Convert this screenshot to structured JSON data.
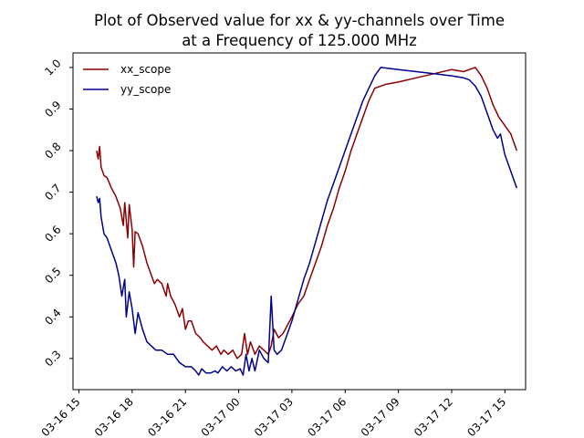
{
  "chart_data": {
    "type": "line",
    "title": [
      "Plot of Observed value for xx & yy-channels over Time",
      "at a Frequency of 125.000 MHz"
    ],
    "xlabel": "",
    "ylabel": "",
    "x_ticks": [
      "03-16 15",
      "03-16 18",
      "03-16 21",
      "03-17 00",
      "03-17 03",
      "03-17 06",
      "03-17 09",
      "03-17 12",
      "03-17 15"
    ],
    "y_ticks": [
      "0.3",
      "0.4",
      "0.5",
      "0.6",
      "0.7",
      "0.8",
      "0.9",
      "1.0"
    ],
    "xlim": [
      "2019-03-16 14:40",
      "2019-03-17 16:10"
    ],
    "ylim": [
      0.225,
      1.035
    ],
    "grid": false,
    "legend_position": "top-left",
    "series": [
      {
        "name": "xx_scope",
        "color": "#8b0000",
        "points": [
          [
            "2019-03-16 16:00",
            0.8
          ],
          [
            "2019-03-16 16:05",
            0.78
          ],
          [
            "2019-03-16 16:10",
            0.81
          ],
          [
            "2019-03-16 16:15",
            0.76
          ],
          [
            "2019-03-16 16:25",
            0.74
          ],
          [
            "2019-03-16 16:35",
            0.735
          ],
          [
            "2019-03-16 16:50",
            0.71
          ],
          [
            "2019-03-16 17:05",
            0.69
          ],
          [
            "2019-03-16 17:20",
            0.66
          ],
          [
            "2019-03-16 17:30",
            0.62
          ],
          [
            "2019-03-16 17:35",
            0.675
          ],
          [
            "2019-03-16 17:45",
            0.59
          ],
          [
            "2019-03-16 17:50",
            0.67
          ],
          [
            "2019-03-16 18:00",
            0.61
          ],
          [
            "2019-03-16 18:05",
            0.52
          ],
          [
            "2019-03-16 18:10",
            0.605
          ],
          [
            "2019-03-16 18:20",
            0.6
          ],
          [
            "2019-03-16 18:35",
            0.57
          ],
          [
            "2019-03-16 18:50",
            0.53
          ],
          [
            "2019-03-16 19:05",
            0.5
          ],
          [
            "2019-03-16 19:15",
            0.48
          ],
          [
            "2019-03-16 19:25",
            0.49
          ],
          [
            "2019-03-16 19:40",
            0.48
          ],
          [
            "2019-03-16 19:55",
            0.45
          ],
          [
            "2019-03-16 20:00",
            0.48
          ],
          [
            "2019-03-16 20:10",
            0.45
          ],
          [
            "2019-03-16 20:25",
            0.43
          ],
          [
            "2019-03-16 20:40",
            0.4
          ],
          [
            "2019-03-16 20:50",
            0.42
          ],
          [
            "2019-03-16 21:00",
            0.37
          ],
          [
            "2019-03-16 21:10",
            0.39
          ],
          [
            "2019-03-16 21:20",
            0.39
          ],
          [
            "2019-03-16 21:35",
            0.36
          ],
          [
            "2019-03-16 21:50",
            0.35
          ],
          [
            "2019-03-16 22:00",
            0.34
          ],
          [
            "2019-03-16 22:15",
            0.33
          ],
          [
            "2019-03-16 22:30",
            0.32
          ],
          [
            "2019-03-16 22:45",
            0.33
          ],
          [
            "2019-03-16 23:00",
            0.31
          ],
          [
            "2019-03-16 23:10",
            0.32
          ],
          [
            "2019-03-16 23:25",
            0.31
          ],
          [
            "2019-03-16 23:40",
            0.32
          ],
          [
            "2019-03-16 23:55",
            0.3
          ],
          [
            "2019-03-17 00:10",
            0.31
          ],
          [
            "2019-03-17 00:20",
            0.36
          ],
          [
            "2019-03-17 00:30",
            0.31
          ],
          [
            "2019-03-17 00:40",
            0.34
          ],
          [
            "2019-03-17 00:55",
            0.31
          ],
          [
            "2019-03-17 01:10",
            0.33
          ],
          [
            "2019-03-17 01:25",
            0.32
          ],
          [
            "2019-03-17 01:40",
            0.31
          ],
          [
            "2019-03-17 01:50",
            0.33
          ],
          [
            "2019-03-17 02:00",
            0.37
          ],
          [
            "2019-03-17 02:15",
            0.35
          ],
          [
            "2019-03-17 02:30",
            0.36
          ],
          [
            "2019-03-17 02:45",
            0.38
          ],
          [
            "2019-03-17 03:00",
            0.4
          ],
          [
            "2019-03-17 03:20",
            0.43
          ],
          [
            "2019-03-17 03:40",
            0.45
          ],
          [
            "2019-03-17 04:00",
            0.49
          ],
          [
            "2019-03-17 04:20",
            0.53
          ],
          [
            "2019-03-17 04:40",
            0.57
          ],
          [
            "2019-03-17 05:00",
            0.62
          ],
          [
            "2019-03-17 05:20",
            0.66
          ],
          [
            "2019-03-17 05:40",
            0.71
          ],
          [
            "2019-03-17 06:00",
            0.75
          ],
          [
            "2019-03-17 06:20",
            0.8
          ],
          [
            "2019-03-17 06:40",
            0.84
          ],
          [
            "2019-03-17 07:00",
            0.88
          ],
          [
            "2019-03-17 07:20",
            0.92
          ],
          [
            "2019-03-17 07:40",
            0.95
          ],
          [
            "2019-03-17 08:20",
            0.96
          ],
          [
            "2019-03-17 09:00",
            0.965
          ],
          [
            "2019-03-17 10:00",
            0.975
          ],
          [
            "2019-03-17 11:00",
            0.985
          ],
          [
            "2019-03-17 12:00",
            0.995
          ],
          [
            "2019-03-17 12:40",
            0.99
          ],
          [
            "2019-03-17 13:00",
            0.995
          ],
          [
            "2019-03-17 13:20",
            1.0
          ],
          [
            "2019-03-17 13:40",
            0.98
          ],
          [
            "2019-03-17 14:00",
            0.95
          ],
          [
            "2019-03-17 14:20",
            0.91
          ],
          [
            "2019-03-17 14:40",
            0.88
          ],
          [
            "2019-03-17 15:00",
            0.86
          ],
          [
            "2019-03-17 15:20",
            0.84
          ],
          [
            "2019-03-17 15:40",
            0.8
          ]
        ]
      },
      {
        "name": "yy_scope",
        "color": "#00008b",
        "points": [
          [
            "2019-03-16 16:00",
            0.69
          ],
          [
            "2019-03-16 16:05",
            0.675
          ],
          [
            "2019-03-16 16:10",
            0.685
          ],
          [
            "2019-03-16 16:15",
            0.64
          ],
          [
            "2019-03-16 16:25",
            0.6
          ],
          [
            "2019-03-16 16:35",
            0.59
          ],
          [
            "2019-03-16 16:50",
            0.56
          ],
          [
            "2019-03-16 17:05",
            0.53
          ],
          [
            "2019-03-16 17:15",
            0.5
          ],
          [
            "2019-03-16 17:25",
            0.45
          ],
          [
            "2019-03-16 17:35",
            0.49
          ],
          [
            "2019-03-16 17:40",
            0.4
          ],
          [
            "2019-03-16 17:50",
            0.46
          ],
          [
            "2019-03-16 18:00",
            0.42
          ],
          [
            "2019-03-16 18:10",
            0.36
          ],
          [
            "2019-03-16 18:20",
            0.41
          ],
          [
            "2019-03-16 18:35",
            0.37
          ],
          [
            "2019-03-16 18:50",
            0.34
          ],
          [
            "2019-03-16 19:05",
            0.33
          ],
          [
            "2019-03-16 19:20",
            0.32
          ],
          [
            "2019-03-16 19:40",
            0.32
          ],
          [
            "2019-03-16 20:00",
            0.31
          ],
          [
            "2019-03-16 20:20",
            0.31
          ],
          [
            "2019-03-16 20:40",
            0.29
          ],
          [
            "2019-03-16 21:00",
            0.28
          ],
          [
            "2019-03-16 21:20",
            0.28
          ],
          [
            "2019-03-16 21:35",
            0.27
          ],
          [
            "2019-03-16 21:45",
            0.26
          ],
          [
            "2019-03-16 21:55",
            0.275
          ],
          [
            "2019-03-16 22:10",
            0.265
          ],
          [
            "2019-03-16 22:25",
            0.265
          ],
          [
            "2019-03-16 22:40",
            0.27
          ],
          [
            "2019-03-16 22:50",
            0.265
          ],
          [
            "2019-03-16 23:05",
            0.28
          ],
          [
            "2019-03-16 23:20",
            0.27
          ],
          [
            "2019-03-16 23:35",
            0.28
          ],
          [
            "2019-03-16 23:50",
            0.27
          ],
          [
            "2019-03-17 00:05",
            0.275
          ],
          [
            "2019-03-17 00:15",
            0.26
          ],
          [
            "2019-03-17 00:25",
            0.31
          ],
          [
            "2019-03-17 00:35",
            0.27
          ],
          [
            "2019-03-17 00:45",
            0.3
          ],
          [
            "2019-03-17 00:55",
            0.27
          ],
          [
            "2019-03-17 01:10",
            0.32
          ],
          [
            "2019-03-17 01:25",
            0.3
          ],
          [
            "2019-03-17 01:40",
            0.29
          ],
          [
            "2019-03-17 01:50",
            0.45
          ],
          [
            "2019-03-17 02:00",
            0.32
          ],
          [
            "2019-03-17 02:10",
            0.31
          ],
          [
            "2019-03-17 02:25",
            0.32
          ],
          [
            "2019-03-17 02:40",
            0.35
          ],
          [
            "2019-03-17 03:00",
            0.39
          ],
          [
            "2019-03-17 03:20",
            0.44
          ],
          [
            "2019-03-17 03:40",
            0.49
          ],
          [
            "2019-03-17 04:00",
            0.53
          ],
          [
            "2019-03-17 04:20",
            0.58
          ],
          [
            "2019-03-17 04:40",
            0.63
          ],
          [
            "2019-03-17 05:00",
            0.68
          ],
          [
            "2019-03-17 05:20",
            0.72
          ],
          [
            "2019-03-17 05:40",
            0.76
          ],
          [
            "2019-03-17 06:00",
            0.8
          ],
          [
            "2019-03-17 06:20",
            0.84
          ],
          [
            "2019-03-17 06:40",
            0.88
          ],
          [
            "2019-03-17 07:00",
            0.92
          ],
          [
            "2019-03-17 07:20",
            0.95
          ],
          [
            "2019-03-17 07:40",
            0.98
          ],
          [
            "2019-03-17 08:00",
            1.0
          ],
          [
            "2019-03-17 09:00",
            0.995
          ],
          [
            "2019-03-17 10:00",
            0.99
          ],
          [
            "2019-03-17 11:00",
            0.985
          ],
          [
            "2019-03-17 12:00",
            0.98
          ],
          [
            "2019-03-17 12:40",
            0.975
          ],
          [
            "2019-03-17 13:00",
            0.97
          ],
          [
            "2019-03-17 13:20",
            0.955
          ],
          [
            "2019-03-17 13:40",
            0.93
          ],
          [
            "2019-03-17 14:00",
            0.89
          ],
          [
            "2019-03-17 14:20",
            0.85
          ],
          [
            "2019-03-17 14:35",
            0.83
          ],
          [
            "2019-03-17 14:45",
            0.84
          ],
          [
            "2019-03-17 15:00",
            0.79
          ],
          [
            "2019-03-17 15:20",
            0.75
          ],
          [
            "2019-03-17 15:40",
            0.71
          ]
        ]
      }
    ]
  }
}
